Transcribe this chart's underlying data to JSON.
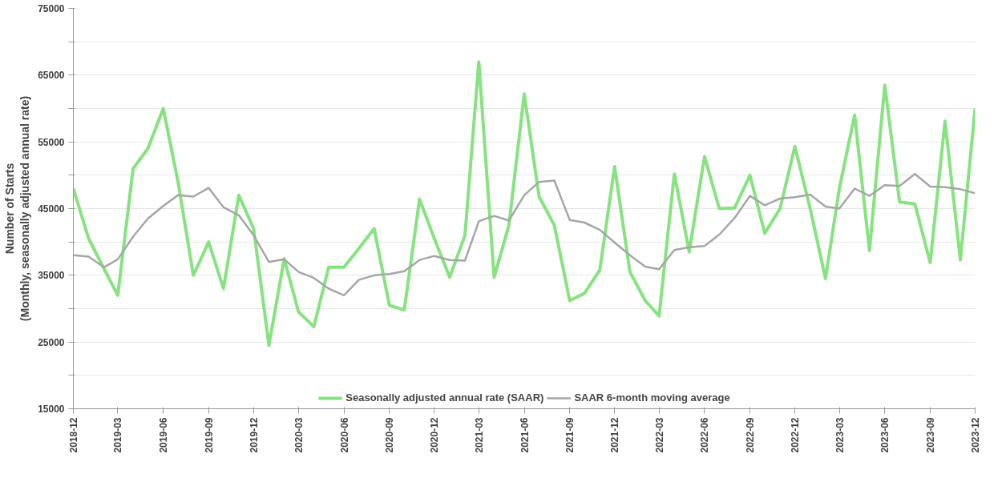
{
  "chart_data": {
    "type": "line",
    "ylabel": "Number of Starts\n(Monthly, seasonally adjusted annual rate)",
    "x": [
      "2018-12",
      "2019-01",
      "2019-02",
      "2019-03",
      "2019-04",
      "2019-05",
      "2019-06",
      "2019-07",
      "2019-08",
      "2019-09",
      "2019-10",
      "2019-11",
      "2019-12",
      "2020-01",
      "2020-02",
      "2020-03",
      "2020-04",
      "2020-05",
      "2020-06",
      "2020-07",
      "2020-08",
      "2020-09",
      "2020-10",
      "2020-11",
      "2020-12",
      "2021-01",
      "2021-02",
      "2021-03",
      "2021-04",
      "2021-05",
      "2021-06",
      "2021-07",
      "2021-08",
      "2021-09",
      "2021-10",
      "2021-11",
      "2021-12",
      "2022-01",
      "2022-02",
      "2022-03",
      "2022-04",
      "2022-05",
      "2022-06",
      "2022-07",
      "2022-08",
      "2022-09",
      "2022-10",
      "2022-11",
      "2022-12",
      "2023-01",
      "2023-02",
      "2023-03",
      "2023-04",
      "2023-05",
      "2023-06",
      "2023-07",
      "2023-08",
      "2023-09",
      "2023-10",
      "2023-11",
      "2023-12"
    ],
    "series": [
      {
        "name": "Seasonally adjusted annual rate (SAAR)",
        "color": "#86e37f",
        "values": [
          48000,
          40500,
          36000,
          32000,
          51000,
          54000,
          60000,
          49000,
          35000,
          40000,
          33000,
          47000,
          42000,
          24500,
          37500,
          29500,
          27300,
          36200,
          36200,
          39000,
          42000,
          30500,
          29800,
          46400,
          40500,
          34700,
          41000,
          67000,
          34700,
          42500,
          62200,
          46800,
          42500,
          31200,
          32300,
          35800,
          51300,
          35500,
          31200,
          28900,
          50200,
          38500,
          52800,
          45000,
          45100,
          50000,
          41300,
          45000,
          54300,
          45000,
          34500,
          48000,
          59000,
          38700,
          63500,
          46000,
          45700,
          36900,
          58100,
          37300,
          60000
        ]
      },
      {
        "name": "SAAR 6-month moving average",
        "color": "#a6a6a6",
        "values": [
          38000,
          37800,
          36200,
          37400,
          40800,
          43500,
          45400,
          47000,
          46800,
          48100,
          45200,
          44000,
          41000,
          37000,
          37400,
          35500,
          34600,
          33000,
          32000,
          34300,
          35000,
          35200,
          35600,
          37300,
          37900,
          37300,
          37200,
          43100,
          43900,
          43200,
          47000,
          49000,
          49200,
          43300,
          42900,
          41800,
          39900,
          38000,
          36300,
          35900,
          38800,
          39200,
          39400,
          41100,
          43600,
          46900,
          45500,
          46500,
          46700,
          47100,
          45300,
          45000,
          48000,
          46900,
          48500,
          48400,
          50200,
          48300,
          48200,
          47900,
          47300
        ]
      }
    ],
    "xlim": [
      "2018-12",
      "2023-12"
    ],
    "xticks": [
      "2018-12",
      "2019-03",
      "2019-06",
      "2019-09",
      "2019-12",
      "2020-03",
      "2020-06",
      "2020-09",
      "2020-12",
      "2021-03",
      "2021-06",
      "2021-09",
      "2021-12",
      "2022-03",
      "2022-06",
      "2022-09",
      "2022-12",
      "2023-03",
      "2023-06",
      "2023-09",
      "2023-12"
    ],
    "ylim": [
      15000,
      75000
    ],
    "yticks": [
      15000,
      {
        "value": 20000,
        "label": null
      },
      25000,
      {
        "value": 30000,
        "label": null
      },
      35000,
      {
        "value": 40000,
        "label": null
      },
      45000,
      {
        "value": 50000,
        "label": null
      },
      55000,
      {
        "value": 60000,
        "label": null
      },
      65000,
      {
        "value": 70000,
        "label": null
      },
      75000
    ],
    "grid": "y",
    "legend": "bottom",
    "line_style": "solid",
    "marker": "none"
  }
}
